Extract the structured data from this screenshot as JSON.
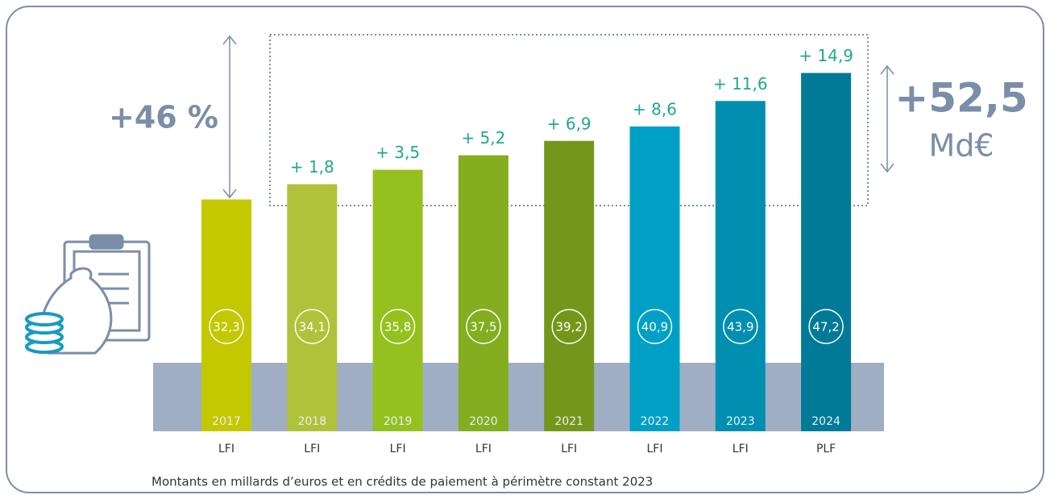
{
  "chart_data": {
    "type": "bar",
    "categories": [
      "2017",
      "2018",
      "2019",
      "2020",
      "2021",
      "2022",
      "2023",
      "2024"
    ],
    "sublabels": [
      "LFI",
      "LFI",
      "LFI",
      "LFI",
      "LFI",
      "LFI",
      "LFI",
      "PLF"
    ],
    "values": [
      32.3,
      34.1,
      35.8,
      37.5,
      39.2,
      40.9,
      43.9,
      47.2
    ],
    "value_labels": [
      "32,3",
      "34,1",
      "35,8",
      "37,5",
      "39,2",
      "40,9",
      "43,9",
      "47,2"
    ],
    "deltas": [
      null,
      1.8,
      3.5,
      5.2,
      6.9,
      8.6,
      11.6,
      14.9
    ],
    "delta_labels": [
      null,
      "+ 1,8",
      "+ 3,5",
      "+ 5,2",
      "+ 6,9",
      "+ 8,6",
      "+ 11,6",
      "+ 14,9"
    ],
    "colors": [
      "#c3c800",
      "#afc23a",
      "#95c11f",
      "#84ad1f",
      "#74961b",
      "#00a0c6",
      "#008fb0",
      "#007a96"
    ],
    "ylim": [
      5,
      50
    ],
    "growth_label": "+46 %",
    "total_label": "+52,5",
    "total_unit": "Md€",
    "footnote": "Montants en millards d’euros et en crédits de paiement à périmètre constant 2023"
  }
}
